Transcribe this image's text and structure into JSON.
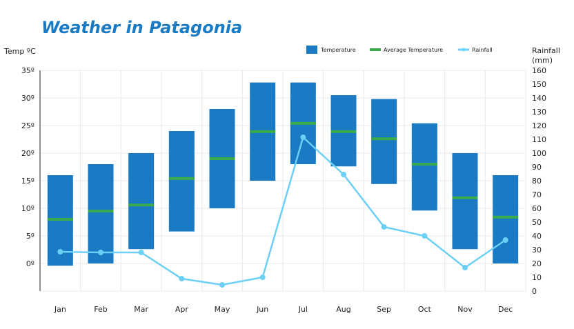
{
  "chart_data": {
    "type": "bar",
    "title": "Weather in Patagonia",
    "ylabel_left": "Temp ºC",
    "ylabel_right": "Rainfall (mm)",
    "ylim_left": [
      -5,
      35
    ],
    "ylim_right": [
      0,
      160
    ],
    "left_ticks": [
      "35º",
      "30º",
      "25º",
      "20º",
      "15º",
      "10º",
      "5º",
      "0º"
    ],
    "left_tick_values": [
      35,
      30,
      25,
      20,
      15,
      10,
      5,
      0
    ],
    "right_ticks": [
      160,
      150,
      140,
      130,
      120,
      110,
      100,
      90,
      80,
      70,
      60,
      50,
      40,
      30,
      20,
      10,
      0
    ],
    "grid": true,
    "legend_position": "top-right",
    "legend": [
      "Temperature",
      "Average Temperature",
      "Rainfall"
    ],
    "categories": [
      "Jan",
      "Feb",
      "Mar",
      "Apr",
      "May",
      "Jun",
      "Jul",
      "Aug",
      "Sep",
      "Oct",
      "Nov",
      "Dec"
    ],
    "temp_max": [
      16,
      18,
      20,
      24,
      28,
      32.8,
      32.8,
      30.5,
      29.8,
      25.4,
      20,
      16
    ],
    "temp_min": [
      -0.4,
      0,
      2.6,
      5.8,
      10,
      15,
      18,
      17.6,
      14.4,
      9.6,
      2.6,
      0
    ],
    "temp_avg": [
      8,
      9.5,
      10.6,
      15.4,
      19,
      23.9,
      25.4,
      23.9,
      22.6,
      18,
      11.9,
      8.4
    ],
    "rainfall": [
      28.5,
      28,
      28,
      9,
      4.5,
      10,
      111.5,
      84.5,
      46.5,
      40,
      17,
      37
    ],
    "colors": {
      "temperature": "#1a7ac4",
      "average": "#3aaa4a",
      "rainfall": "#6ccff6",
      "title": "#1a7ac4"
    }
  }
}
